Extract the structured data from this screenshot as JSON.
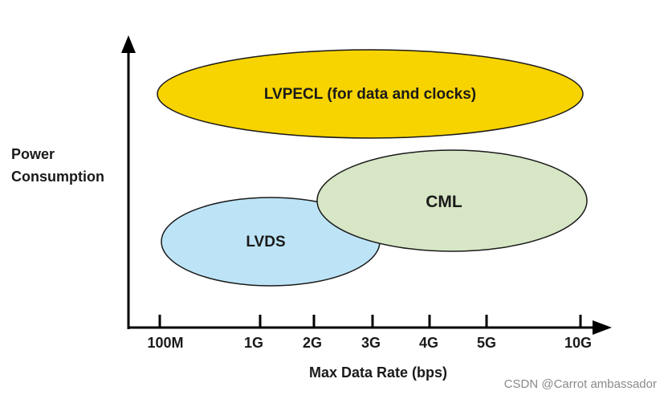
{
  "ylabel": [
    "Power",
    "Consumption"
  ],
  "xlabel": "Max Data Rate (bps)",
  "ticks": [
    "100M",
    "1G",
    "2G",
    "3G",
    "4G",
    "5G",
    "10G"
  ],
  "regions": [
    {
      "label": "LVPECL (for data and clocks)",
      "fill": "#f7d300"
    },
    {
      "label": "LVDS",
      "fill": "#bde4f6"
    },
    {
      "label": "CML",
      "fill": "#d7e7c6"
    }
  ],
  "watermark": "CSDN @Carrot ambassador"
}
